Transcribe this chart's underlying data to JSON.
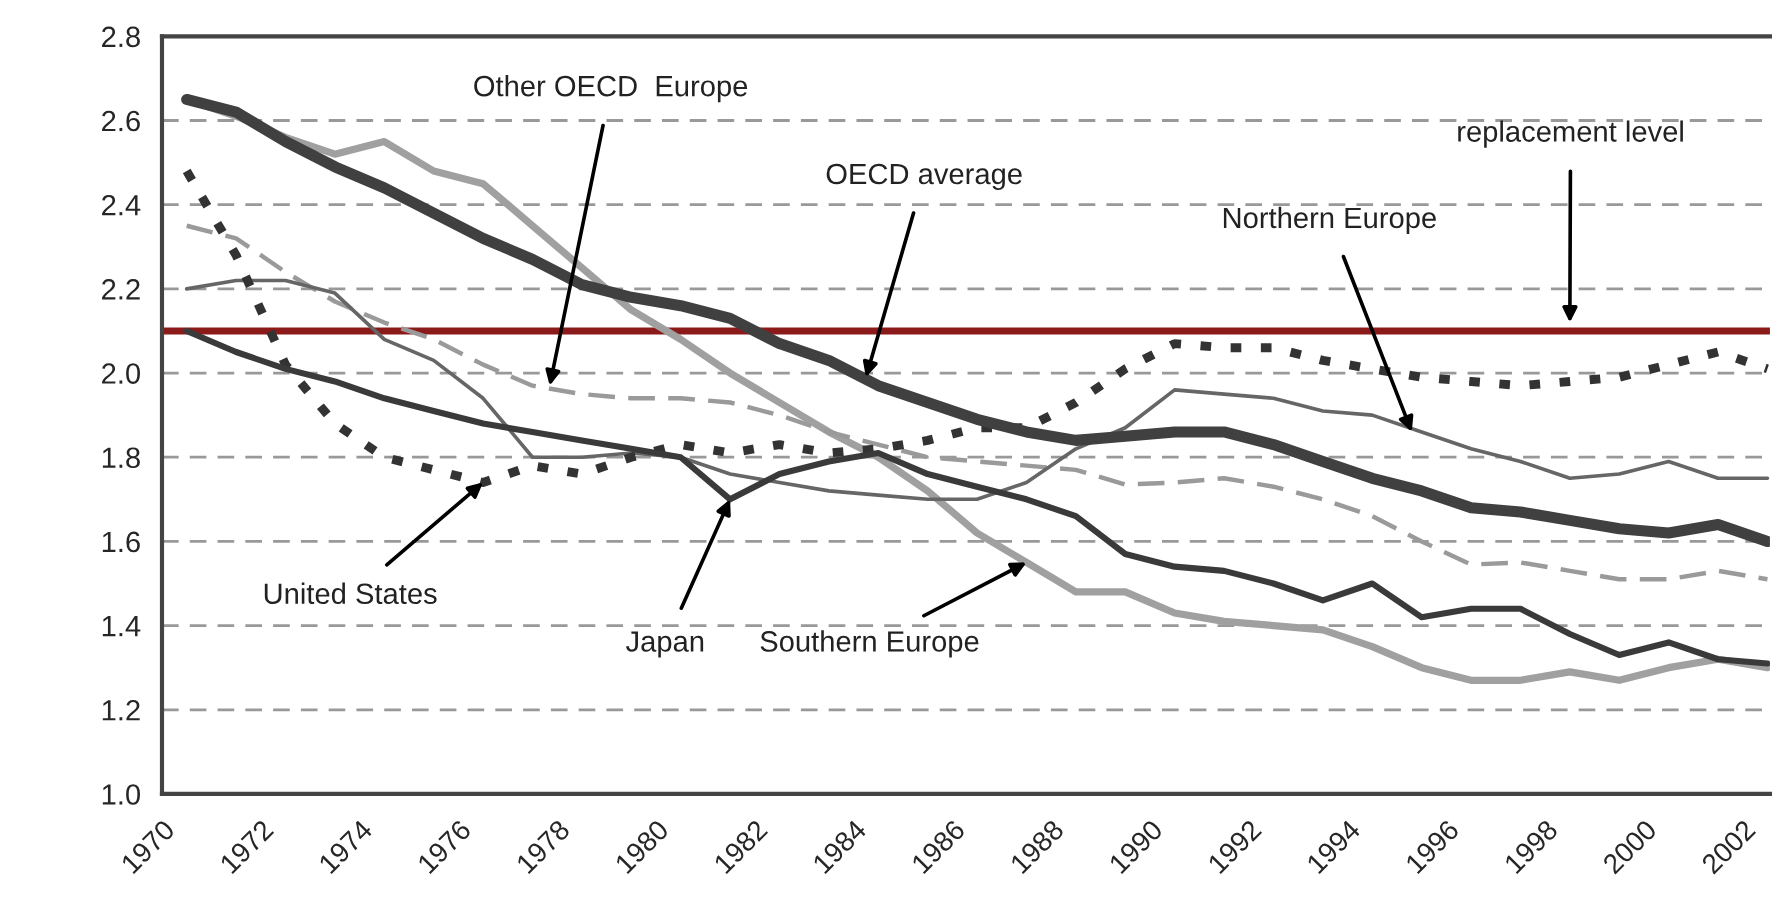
{
  "chart_data": {
    "type": "line",
    "x": [
      1970.5,
      1971.5,
      1972.5,
      1973.5,
      1974.5,
      1975.5,
      1976.5,
      1977.5,
      1978.5,
      1979.5,
      1980.5,
      1981.5,
      1982.5,
      1983.5,
      1984.5,
      1985.5,
      1986.5,
      1987.5,
      1988.5,
      1989.5,
      1990.5,
      1991.5,
      1992.5,
      1993.5,
      1994.5,
      1995.5,
      1996.5,
      1997.5,
      1998.5,
      1999.5,
      2000.5,
      2001.5,
      2002.5
    ],
    "series": [
      {
        "color": "#404040",
        "line_style": "solid",
        "values": [
          2.65,
          2.62,
          2.55,
          2.49,
          2.44,
          2.38,
          2.32,
          2.27,
          2.21,
          2.18,
          2.16,
          2.13,
          2.07,
          2.03,
          1.97,
          1.93,
          1.89,
          1.86,
          1.84,
          1.85,
          1.86,
          1.86,
          1.83,
          1.79,
          1.75,
          1.72,
          1.68,
          1.67,
          1.65,
          1.63,
          1.62,
          1.64,
          1.6
        ]
      },
      {
        "color": "#a0a0a0",
        "line_style": "solid",
        "values": [
          2.65,
          2.61,
          2.56,
          2.52,
          2.55,
          2.48,
          2.45,
          2.35,
          2.25,
          2.15,
          2.08,
          2.0,
          1.93,
          1.86,
          1.8,
          1.72,
          1.62,
          1.55,
          1.48,
          1.48,
          1.43,
          1.41,
          1.4,
          1.39,
          1.35,
          1.3,
          1.27,
          1.27,
          1.29,
          1.27,
          1.3,
          1.32,
          1.3
        ]
      },
      {
        "color": "#3a3a3a",
        "line_style": "solid",
        "values": [
          2.1,
          2.05,
          2.01,
          1.98,
          1.94,
          1.91,
          1.88,
          1.86,
          1.84,
          1.82,
          1.8,
          1.7,
          1.76,
          1.79,
          1.81,
          1.76,
          1.73,
          1.7,
          1.66,
          1.57,
          1.54,
          1.53,
          1.5,
          1.46,
          1.5,
          1.42,
          1.44,
          1.44,
          1.38,
          1.33,
          1.36,
          1.32,
          1.31
        ]
      },
      {
        "color": "#333333",
        "line_style": "dotted",
        "values": [
          2.48,
          2.28,
          2.02,
          1.88,
          1.8,
          1.77,
          1.74,
          1.78,
          1.76,
          1.8,
          1.83,
          1.81,
          1.83,
          1.81,
          1.82,
          1.84,
          1.87,
          1.87,
          1.93,
          2.01,
          2.07,
          2.06,
          2.06,
          2.03,
          2.01,
          1.99,
          1.98,
          1.97,
          1.98,
          1.99,
          2.02,
          2.05,
          2.01
        ]
      },
      {
        "color": "#9a9a9a",
        "line_style": "dashed",
        "values": [
          2.35,
          2.32,
          2.24,
          2.17,
          2.12,
          2.08,
          2.02,
          1.97,
          1.95,
          1.94,
          1.94,
          1.93,
          1.9,
          1.86,
          1.83,
          1.8,
          1.79,
          1.78,
          1.77,
          1.735,
          1.74,
          1.75,
          1.73,
          1.7,
          1.66,
          1.6,
          1.545,
          1.55,
          1.53,
          1.51,
          1.51,
          1.53,
          1.51
        ]
      },
      {
        "color": "#666666",
        "line_style": "solid",
        "values": [
          2.2,
          2.22,
          2.22,
          2.19,
          2.08,
          2.03,
          1.94,
          1.8,
          1.8,
          1.81,
          1.8,
          1.76,
          1.74,
          1.72,
          1.71,
          1.7,
          1.7,
          1.74,
          1.82,
          1.87,
          1.96,
          1.95,
          1.94,
          1.91,
          1.9,
          1.86,
          1.82,
          1.79,
          1.75,
          1.76,
          1.79,
          1.75,
          1.75
        ]
      }
    ],
    "ref_lines": [
      {
        "axis": "y",
        "value": 2.1,
        "color": "#8b1a1a",
        "line_style": "solid"
      }
    ],
    "annotations": [
      {
        "text": "Other OECD  Europe",
        "x": 1977.85,
        "y": 1.97
      },
      {
        "text": "OECD average",
        "x": 1984.25,
        "y": 1.99
      },
      {
        "text": "replacement level",
        "x": 1998.5,
        "y": 2.12
      },
      {
        "text": "Northern Europe",
        "x": 1995.3,
        "y": 1.86
      },
      {
        "text": "United States",
        "x": 1976.5,
        "y": 1.74
      },
      {
        "text": "Japan",
        "x": 1981.5,
        "y": 1.7
      },
      {
        "text": "Southern Europe",
        "x": 1987.5,
        "y": 1.55
      }
    ],
    "xlim": [
      1970,
      2002.55
    ],
    "xticks": [
      1970,
      1972,
      1974,
      1976,
      1978,
      1980,
      1982,
      1984,
      1986,
      1988,
      1990,
      1992,
      1994,
      1996,
      1998,
      2000,
      2002
    ],
    "ylim": [
      1.0,
      2.8
    ],
    "yticks": [
      {
        "value": 1,
        "label": "1.0"
      },
      1.2,
      1.4,
      1.6,
      1.8,
      {
        "value": 2,
        "label": "2.0"
      },
      2.2,
      2.4,
      2.6,
      2.8
    ],
    "grid": "y",
    "legend": false
  }
}
